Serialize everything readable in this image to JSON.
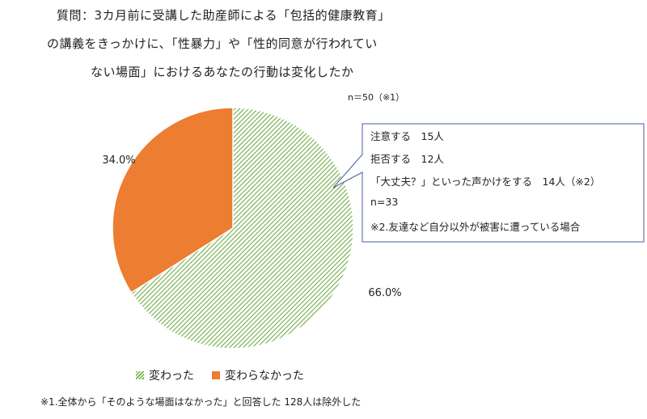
{
  "title": {
    "line1": "質問：3カ月前に受講した助産師による「包括的健康教育」",
    "line2": "の講義をきっかけに、「性暴力」や「性的同意が行われてい",
    "line3": "ない場面」におけるあなたの行動は変化したか"
  },
  "sample_size": "n＝50（※1）",
  "callout": {
    "lines": [
      "注意する　15人",
      "拒否する　12人",
      "「大丈夫？」といった声かけをする　14人（※2）",
      "n=33",
      "※2.友達など自分以外が被害に遭っている場合"
    ]
  },
  "legend": {
    "changed": "変わった",
    "unchanged": "変わらなかった"
  },
  "footnote": "※1.全体から「そのような場面はなかった」と回答した 128人は除外した",
  "colors": {
    "changed": "#70AD47",
    "unchanged": "#ED7D31",
    "callout_border": "#4A5D9E"
  },
  "chart_data": {
    "type": "pie",
    "categories": [
      "変わった",
      "変わらなかった"
    ],
    "values": [
      66.0,
      34.0
    ],
    "data_labels": [
      "66.0%",
      "34.0%"
    ],
    "legend_position": "bottom"
  }
}
